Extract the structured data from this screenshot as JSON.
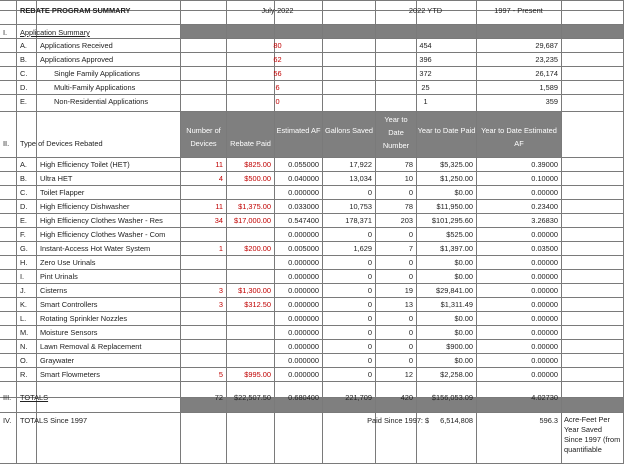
{
  "header": {
    "title": "REBATE PROGRAM SUMMARY",
    "col_month": "July-2022",
    "col_ytd": "2022 YTD",
    "col_since": "1997 - Present"
  },
  "section1": {
    "num": "I.",
    "label": "Application Summary",
    "rows": [
      {
        "letter": "A.",
        "label": "Applications Received",
        "month": "80",
        "ytd": "454",
        "since": "29,687"
      },
      {
        "letter": "B.",
        "label": "Applications Approved",
        "month": "62",
        "ytd": "396",
        "since": "23,235"
      },
      {
        "letter": "C.",
        "label": "Single Family Applications",
        "month": "56",
        "ytd": "372",
        "since": "26,174"
      },
      {
        "letter": "D.",
        "label": "Multi-Family Applications",
        "month": "6",
        "ytd": "25",
        "since": "1,589"
      },
      {
        "letter": "E.",
        "label": "Non-Residential Applications",
        "month": "0",
        "ytd": "1",
        "since": "359"
      }
    ]
  },
  "section2": {
    "num": "II.",
    "label": "Type of Devices Rebated",
    "headers": {
      "devices": "Number of Devices",
      "rebate": "Rebate Paid",
      "af": "Estimated AF",
      "gallons": "Gallons Saved",
      "ytd_num": "Year to Date Number",
      "ytd_paid": "Year to Date Paid",
      "ytd_af": "Year to Date Estimated AF"
    },
    "rows": [
      {
        "letter": "A.",
        "label": "High Efficiency Toilet (HET)",
        "devices": "11",
        "rebate": "$825.00",
        "af": "0.055000",
        "gallons": "17,922",
        "ytd_num": "78",
        "ytd_paid": "$5,325.00",
        "ytd_af": "0.39000"
      },
      {
        "letter": "B.",
        "label": "Ultra HET",
        "devices": "4",
        "rebate": "$500.00",
        "af": "0.040000",
        "gallons": "13,034",
        "ytd_num": "10",
        "ytd_paid": "$1,250.00",
        "ytd_af": "0.10000"
      },
      {
        "letter": "C.",
        "label": "Toilet Flapper",
        "devices": "",
        "rebate": "",
        "af": "0.000000",
        "gallons": "0",
        "ytd_num": "0",
        "ytd_paid": "$0.00",
        "ytd_af": "0.00000"
      },
      {
        "letter": "D.",
        "label": "High Efficiency Dishwasher",
        "devices": "11",
        "rebate": "$1,375.00",
        "af": "0.033000",
        "gallons": "10,753",
        "ytd_num": "78",
        "ytd_paid": "$11,950.00",
        "ytd_af": "0.23400"
      },
      {
        "letter": "E.",
        "label": "High Efficiency Clothes Washer - Res",
        "devices": "34",
        "rebate": "$17,000.00",
        "af": "0.547400",
        "gallons": "178,371",
        "ytd_num": "203",
        "ytd_paid": "$101,295.60",
        "ytd_af": "3.26830"
      },
      {
        "letter": "F.",
        "label": "High Efficiency Clothes Washer - Com",
        "devices": "",
        "rebate": "",
        "af": "0.000000",
        "gallons": "0",
        "ytd_num": "0",
        "ytd_paid": "$525.00",
        "ytd_af": "0.00000"
      },
      {
        "letter": "G.",
        "label": "Instant-Access Hot Water System",
        "devices": "1",
        "rebate": "$200.00",
        "af": "0.005000",
        "gallons": "1,629",
        "ytd_num": "7",
        "ytd_paid": "$1,397.00",
        "ytd_af": "0.03500"
      },
      {
        "letter": "H.",
        "label": "Zero Use Urinals",
        "devices": "",
        "rebate": "",
        "af": "0.000000",
        "gallons": "0",
        "ytd_num": "0",
        "ytd_paid": "$0.00",
        "ytd_af": "0.00000"
      },
      {
        "letter": "I.",
        "label": "Pint Urinals",
        "devices": "",
        "rebate": "",
        "af": "0.000000",
        "gallons": "0",
        "ytd_num": "0",
        "ytd_paid": "$0.00",
        "ytd_af": "0.00000"
      },
      {
        "letter": "J.",
        "label": "Cisterns",
        "devices": "3",
        "rebate": "$1,300.00",
        "af": "0.000000",
        "gallons": "0",
        "ytd_num": "19",
        "ytd_paid": "$29,841.00",
        "ytd_af": "0.00000"
      },
      {
        "letter": "K.",
        "label": "Smart Controllers",
        "devices": "3",
        "rebate": "$312.50",
        "af": "0.000000",
        "gallons": "0",
        "ytd_num": "13",
        "ytd_paid": "$1,311.49",
        "ytd_af": "0.00000"
      },
      {
        "letter": "L.",
        "label": "Rotating Sprinkler Nozzles",
        "devices": "",
        "rebate": "",
        "af": "0.000000",
        "gallons": "0",
        "ytd_num": "0",
        "ytd_paid": "$0.00",
        "ytd_af": "0.00000"
      },
      {
        "letter": "M.",
        "label": "Moisture Sensors",
        "devices": "",
        "rebate": "",
        "af": "0.000000",
        "gallons": "0",
        "ytd_num": "0",
        "ytd_paid": "$0.00",
        "ytd_af": "0.00000"
      },
      {
        "letter": "N.",
        "label": "Lawn Removal & Replacement",
        "devices": "",
        "rebate": "",
        "af": "0.000000",
        "gallons": "0",
        "ytd_num": "0",
        "ytd_paid": "$900.00",
        "ytd_af": "0.00000"
      },
      {
        "letter": "O.",
        "label": "Graywater",
        "devices": "",
        "rebate": "",
        "af": "0.000000",
        "gallons": "0",
        "ytd_num": "0",
        "ytd_paid": "$0.00",
        "ytd_af": "0.00000"
      },
      {
        "letter": "R.",
        "label": "Smart Flowmeters",
        "devices": "5",
        "rebate": "$995.00",
        "af": "0.000000",
        "gallons": "0",
        "ytd_num": "12",
        "ytd_paid": "$2,258.00",
        "ytd_af": "0.00000"
      }
    ]
  },
  "totals": {
    "num": "III.",
    "label": "TOTALS",
    "devices": "72",
    "rebate": "$22,507.50",
    "af": "0.680400",
    "gallons": "221,709",
    "ytd_num": "420",
    "ytd_paid": "$156,053.09",
    "ytd_af": "4.02730"
  },
  "since1997": {
    "num": "IV.",
    "label": "TOTALS Since 1997",
    "paid_label": "Paid Since 1997:",
    "currency": "$",
    "paid_value": "6,514,808",
    "af_value": "596.3",
    "af_note": "Acre-Feet Per Year Saved Since 1997 (from quantifiable"
  }
}
